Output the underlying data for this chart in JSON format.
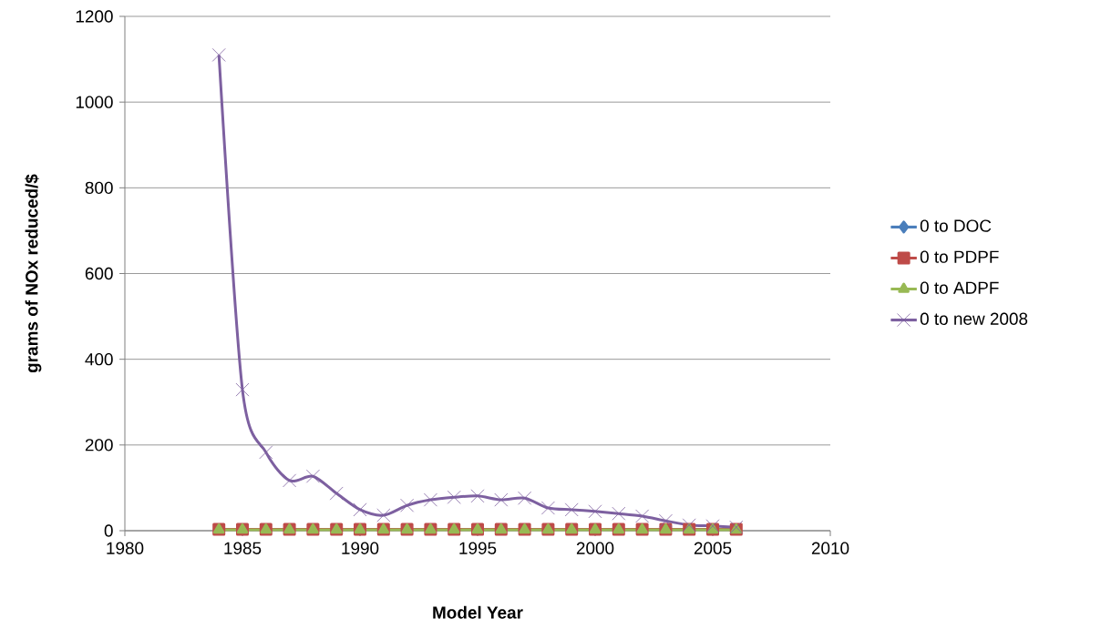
{
  "chart_data": {
    "type": "line",
    "xlabel": "Model Year",
    "ylabel": "grams of NOx reduced/$",
    "x": [
      1984,
      1985,
      1986,
      1987,
      1988,
      1989,
      1990,
      1991,
      1992,
      1993,
      1994,
      1995,
      1996,
      1997,
      1998,
      1999,
      2000,
      2001,
      2002,
      2003,
      2004,
      2005,
      2006
    ],
    "series": [
      {
        "name": "0 to DOC",
        "color": "#4a7ebb",
        "marker": "diamond",
        "values": [
          null,
          null,
          null,
          null,
          null,
          null,
          null,
          null,
          null,
          null,
          null,
          null,
          null,
          null,
          null,
          null,
          null,
          null,
          null,
          null,
          null,
          null,
          null
        ]
      },
      {
        "name": "0 to PDPF",
        "color": "#be4b48",
        "marker": "square",
        "values": [
          3,
          3,
          3,
          3,
          3,
          3,
          3,
          3,
          3,
          3,
          3,
          3,
          3,
          3,
          3,
          3,
          3,
          3,
          3,
          3,
          3,
          3,
          3
        ]
      },
      {
        "name": "0 to ADPF",
        "color": "#98b954",
        "marker": "triangle",
        "values": [
          2,
          2,
          2,
          2,
          2,
          2,
          2,
          2,
          2,
          2,
          2,
          2,
          2,
          2,
          2,
          2,
          2,
          2,
          2,
          2,
          2,
          2,
          2
        ]
      },
      {
        "name": "0 to new 2008",
        "color": "#7d60a0",
        "marker": "cross",
        "values": [
          1110,
          329,
          183,
          117,
          127,
          87,
          49,
          36,
          59,
          72,
          78,
          81,
          72,
          76,
          53,
          49,
          45,
          40,
          34,
          23,
          13,
          11,
          8
        ]
      }
    ],
    "xlim": [
      1980,
      2010
    ],
    "xticks": [
      1980,
      1985,
      1990,
      1995,
      2000,
      2005,
      2010
    ],
    "ylim": [
      0,
      1200
    ],
    "yticks": [
      0,
      200,
      400,
      600,
      800,
      1000,
      1200
    ],
    "grid": "y",
    "legend": "right"
  }
}
